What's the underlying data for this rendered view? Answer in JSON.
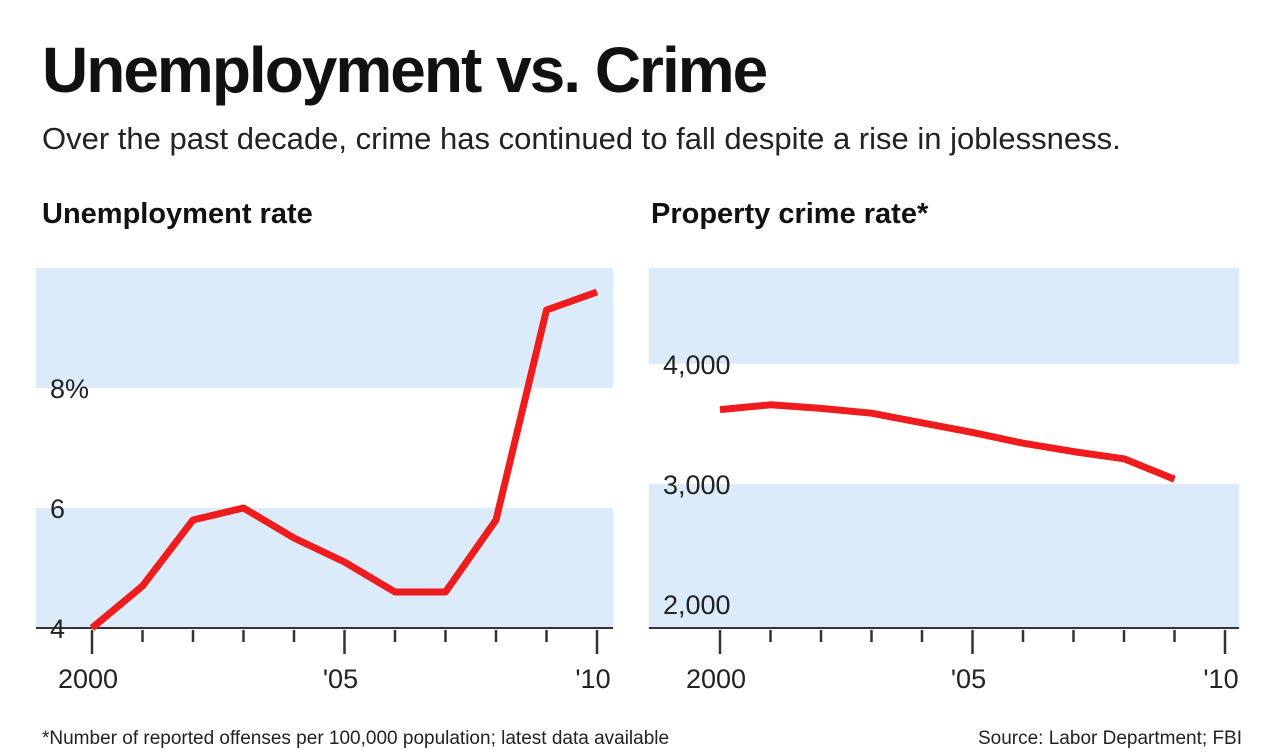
{
  "title": "Unemployment vs. Crime",
  "subtitle": "Over the past decade, crime has continued to fall despite a rise in joblessness.",
  "footnote": "*Number of reported offenses per 100,000 population; latest data available",
  "source": "Source: Labor Department;  FBI",
  "colors": {
    "line": "#ee1c1c",
    "band": "#dcebf9",
    "axis": "#333333"
  },
  "chart_data": [
    {
      "type": "line",
      "title": "Unemployment rate",
      "x": [
        2000,
        2001,
        2002,
        2003,
        2004,
        2005,
        2006,
        2007,
        2008,
        2009,
        2010
      ],
      "values": [
        4.0,
        4.7,
        5.8,
        6.0,
        5.5,
        5.1,
        4.6,
        4.6,
        5.8,
        9.3,
        9.6
      ],
      "xlim": [
        2000,
        2010
      ],
      "ylim": [
        4,
        10
      ],
      "xtick_labels": [
        {
          "x": 2000,
          "label": "2000"
        },
        {
          "x": 2005,
          "label": "'05"
        },
        {
          "x": 2010,
          "label": "'10"
        }
      ],
      "ytick_labels": [
        {
          "y": 4,
          "label": "4"
        },
        {
          "y": 6,
          "label": "6"
        },
        {
          "y": 8,
          "label": "8%"
        }
      ],
      "bands": [
        [
          4,
          6
        ],
        [
          8,
          10
        ]
      ]
    },
    {
      "type": "line",
      "title": "Property crime rate*",
      "x": [
        2000,
        2001,
        2002,
        2003,
        2004,
        2005,
        2006,
        2007,
        2008,
        2009
      ],
      "values": [
        3620,
        3660,
        3630,
        3590,
        3510,
        3430,
        3340,
        3270,
        3210,
        3040
      ],
      "xlim": [
        2000,
        2010
      ],
      "ylim": [
        1800,
        4800
      ],
      "xtick_labels": [
        {
          "x": 2000,
          "label": "2000"
        },
        {
          "x": 2005,
          "label": "'05"
        },
        {
          "x": 2010,
          "label": "'10"
        }
      ],
      "ytick_labels": [
        {
          "y": 2000,
          "label": "2,000"
        },
        {
          "y": 3000,
          "label": "3,000"
        },
        {
          "y": 4000,
          "label": "4,000"
        }
      ],
      "bands": [
        [
          1800,
          3000
        ],
        [
          4000,
          4800
        ]
      ]
    }
  ]
}
